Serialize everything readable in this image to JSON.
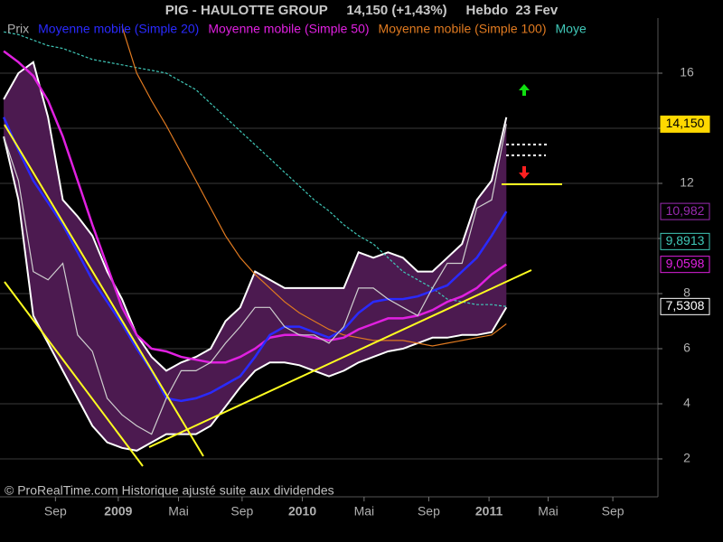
{
  "chart_data": {
    "type": "line",
    "title": "PIG - HAULOTTE GROUP     14,150 (+1,43%)     Hebdo  23 Fev",
    "footer": "© ProRealTime.com Historique ajusté suite aux dividendes",
    "x": [
      0,
      4,
      8,
      12,
      16,
      20,
      24,
      28,
      32,
      36,
      40,
      44,
      48,
      52,
      56,
      60,
      64,
      68,
      72,
      76,
      80,
      84,
      88,
      92,
      96,
      100,
      104,
      108,
      112,
      116,
      120,
      124,
      128,
      132,
      136
    ],
    "xlim": [
      -1,
      177
    ],
    "xticks": [
      {
        "value": 14,
        "label": "Sep"
      },
      {
        "value": 31,
        "label": "2009"
      },
      {
        "value": 47.3,
        "label": "Mai"
      },
      {
        "value": 64.5,
        "label": "Sep"
      },
      {
        "value": 80.8,
        "label": "2010"
      },
      {
        "value": 97.5,
        "label": "Mai"
      },
      {
        "value": 115,
        "label": "Sep"
      },
      {
        "value": 131.3,
        "label": "2011"
      },
      {
        "value": 147.3,
        "label": "Mai"
      },
      {
        "value": 164.8,
        "label": "Sep"
      }
    ],
    "ylim": [
      1,
      18
    ],
    "yticks": [
      2,
      4,
      6,
      8,
      10,
      12,
      14,
      16
    ],
    "grid": true,
    "series": [
      {
        "name": "Prix",
        "color": "#cfcfcf",
        "values": [
          13.7,
          12.1,
          8.8,
          8.5,
          9.1,
          6.5,
          5.9,
          4.2,
          3.6,
          3.2,
          2.9,
          4.2,
          5.2,
          5.2,
          5.5,
          6.2,
          6.8,
          7.5,
          7.5,
          6.8,
          6.5,
          6.5,
          6.2,
          6.8,
          8.2,
          8.2,
          7.8,
          7.5,
          7.2,
          8.2,
          9.1,
          9.1,
          11.1,
          11.4,
          14.15
        ]
      },
      {
        "name": "Moyenne mobile (Simple 20)",
        "color": "#2a2aff",
        "values": [
          14.4,
          13.2,
          12.1,
          11.3,
          10.5,
          9.5,
          8.5,
          7.7,
          6.9,
          6.0,
          5.2,
          4.2,
          4.1,
          4.2,
          4.4,
          4.7,
          5.0,
          5.7,
          6.5,
          6.8,
          6.8,
          6.6,
          6.4,
          6.7,
          7.3,
          7.7,
          7.8,
          7.8,
          7.9,
          8.1,
          8.3,
          8.8,
          9.3,
          10.1,
          10.98
        ]
      },
      {
        "name": "Moyenne mobile (Simple 50)",
        "color": "#e020e0",
        "values": [
          16.8,
          16.4,
          15.9,
          15.0,
          13.7,
          12.1,
          10.5,
          9.0,
          7.5,
          6.5,
          6.0,
          5.9,
          5.7,
          5.6,
          5.5,
          5.5,
          5.7,
          6.0,
          6.4,
          6.5,
          6.5,
          6.4,
          6.3,
          6.4,
          6.7,
          6.9,
          7.1,
          7.1,
          7.2,
          7.4,
          7.7,
          7.9,
          8.2,
          8.7,
          9.06
        ]
      },
      {
        "name": "Moyenne mobile (Simple 100)",
        "color": "#e07a20",
        "values": [
          null,
          null,
          null,
          null,
          null,
          null,
          null,
          null,
          17.7,
          16.0,
          15.0,
          14.1,
          13.1,
          12.1,
          11.1,
          10.1,
          9.3,
          8.7,
          8.2,
          7.7,
          7.3,
          7.0,
          6.7,
          6.5,
          6.4,
          6.3,
          6.3,
          6.3,
          6.2,
          6.1,
          6.2,
          6.3,
          6.4,
          6.5,
          6.9
        ]
      },
      {
        "name": "Moye",
        "color": "#40c8b8",
        "values": [
          17.5,
          17.4,
          17.2,
          17.0,
          16.9,
          16.7,
          16.5,
          16.4,
          16.3,
          16.2,
          16.1,
          16.0,
          15.7,
          15.4,
          14.9,
          14.4,
          13.9,
          13.4,
          12.9,
          12.4,
          11.9,
          11.4,
          11.0,
          10.5,
          10.1,
          9.8,
          9.3,
          8.8,
          8.5,
          8.2,
          7.8,
          7.7,
          7.6,
          7.6,
          7.53
        ]
      }
    ],
    "band": {
      "color": "#4c1a50",
      "line_color": "#ffffff",
      "upper": [
        15.05,
        16.0,
        16.4,
        14.4,
        11.4,
        10.8,
        10.1,
        8.8,
        7.8,
        6.5,
        5.7,
        5.2,
        5.5,
        5.7,
        6.0,
        7.0,
        7.5,
        8.8,
        8.5,
        8.2,
        8.2,
        8.2,
        8.2,
        8.2,
        9.5,
        9.3,
        9.5,
        9.3,
        8.8,
        8.8,
        9.3,
        9.8,
        11.4,
        12.1,
        14.4
      ],
      "lower": [
        13.7,
        11.4,
        7.2,
        6.2,
        5.2,
        4.2,
        3.2,
        2.6,
        2.4,
        2.3,
        2.6,
        2.9,
        2.9,
        2.9,
        3.2,
        3.9,
        4.6,
        5.2,
        5.5,
        5.5,
        5.4,
        5.2,
        5.0,
        5.2,
        5.5,
        5.7,
        5.9,
        6.0,
        6.2,
        6.4,
        6.4,
        6.5,
        6.5,
        6.6,
        7.5
      ]
    },
    "last_labels": [
      {
        "value": 14.15,
        "label": "14,150",
        "color": "#ffd800"
      },
      {
        "value": 10.98,
        "label": "10,982",
        "color": "#9a2ab0"
      },
      {
        "value": 9.89,
        "label": "9,8913",
        "color": "#40c8b8"
      },
      {
        "value": 9.06,
        "label": "9,0598",
        "color": "#e020e0"
      },
      {
        "value": 7.53,
        "label": "7,5308",
        "color": "#ffffff"
      }
    ]
  }
}
